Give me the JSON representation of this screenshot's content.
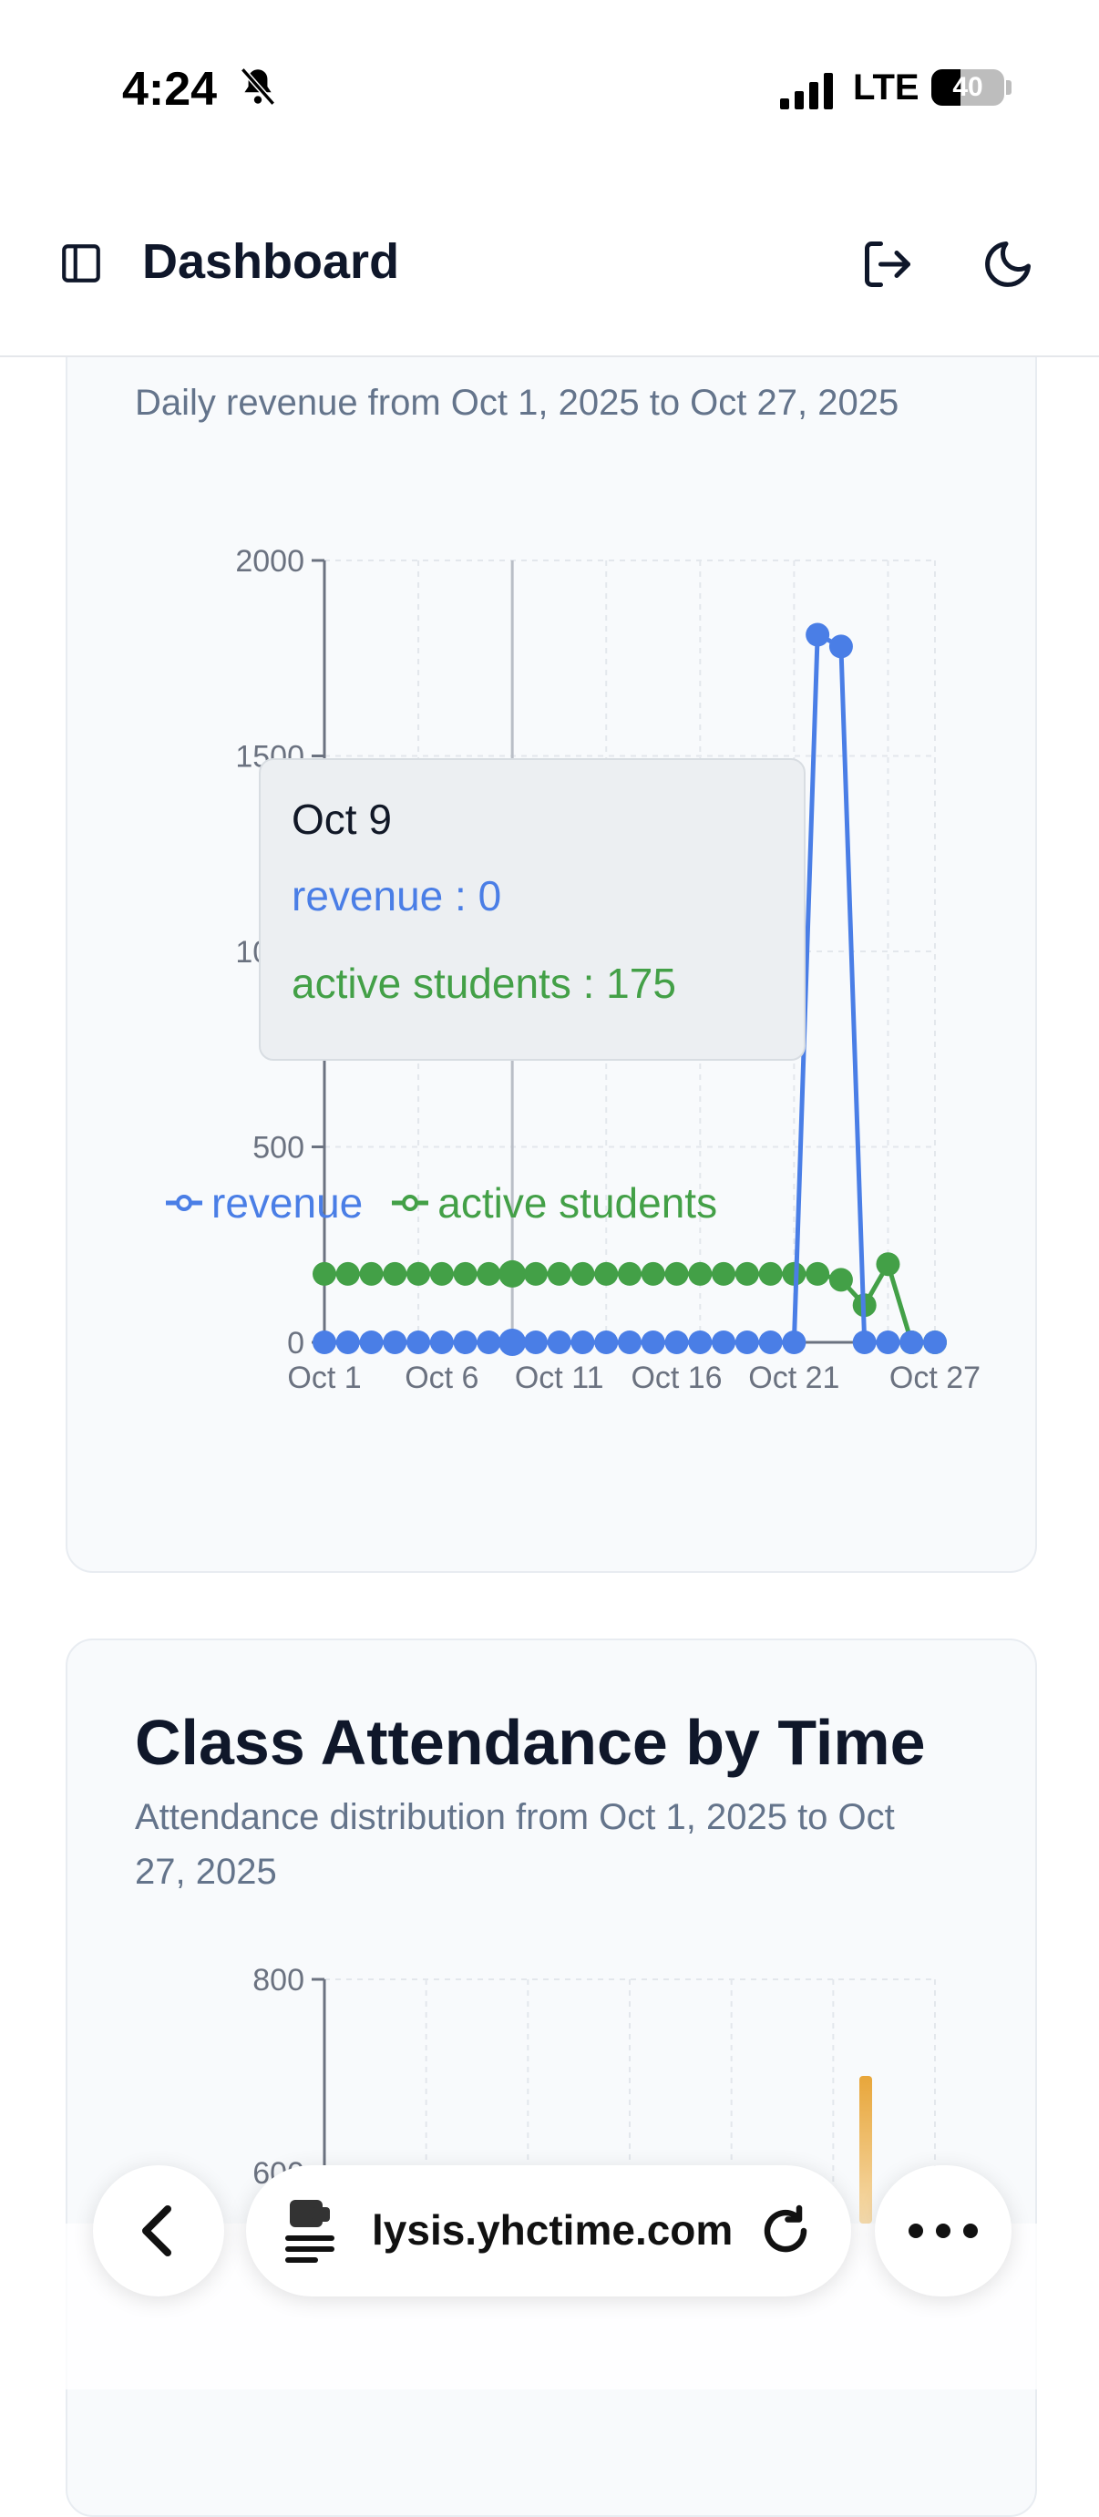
{
  "status_bar": {
    "time": "4:24",
    "network": "LTE",
    "battery": "40",
    "battery_level": 0.4
  },
  "header": {
    "title": "Dashboard",
    "icons": [
      "sidebar-toggle-icon",
      "logout-icon",
      "moon-icon"
    ]
  },
  "revenue_card": {
    "subtitle": "Daily revenue from Oct 1, 2025 to Oct 27, 2025"
  },
  "tooltip": {
    "date": "Oct 9",
    "revenue_text": "revenue : 0",
    "students_text": "active students : 175"
  },
  "attendance_card": {
    "title": "Class Attendance by Time",
    "subtitle": "Attendance distribution from Oct 1, 2025 to Oct 27, 2025"
  },
  "browser": {
    "url": "lysis.yhctime.com"
  },
  "chart_data": [
    {
      "type": "line",
      "title": "",
      "xlabel": "",
      "ylabel": "",
      "ylim": [
        0,
        2000
      ],
      "yticks": [
        0,
        500,
        1000,
        1500,
        2000
      ],
      "xticks": [
        "Oct 1",
        "Oct 6",
        "Oct 11",
        "Oct 16",
        "Oct 21",
        "Oct 27"
      ],
      "categories": [
        "Oct 1",
        "Oct 2",
        "Oct 3",
        "Oct 4",
        "Oct 5",
        "Oct 6",
        "Oct 7",
        "Oct 8",
        "Oct 9",
        "Oct 10",
        "Oct 11",
        "Oct 12",
        "Oct 13",
        "Oct 14",
        "Oct 15",
        "Oct 16",
        "Oct 17",
        "Oct 18",
        "Oct 19",
        "Oct 20",
        "Oct 21",
        "Oct 22",
        "Oct 23",
        "Oct 24",
        "Oct 25",
        "Oct 26",
        "Oct 27"
      ],
      "grid": true,
      "legend_position": "bottom",
      "series": [
        {
          "name": "revenue",
          "color": "#4a7ee6",
          "values": [
            0,
            0,
            0,
            0,
            0,
            0,
            0,
            0,
            0,
            0,
            0,
            0,
            0,
            0,
            0,
            0,
            0,
            0,
            0,
            0,
            0,
            1810,
            1780,
            0,
            0,
            0,
            0
          ]
        },
        {
          "name": "active students",
          "color": "#43a047",
          "values": [
            175,
            175,
            175,
            175,
            175,
            175,
            175,
            175,
            175,
            175,
            175,
            175,
            175,
            175,
            175,
            175,
            175,
            175,
            175,
            175,
            175,
            175,
            160,
            95,
            200,
            0,
            0
          ]
        }
      ]
    },
    {
      "type": "bar",
      "title": "Class Attendance by Time",
      "ylim": [
        0,
        800
      ],
      "yticks": [
        600,
        800
      ],
      "series": [
        {
          "name": "",
          "color": "#e8a63a",
          "values": [
            700
          ]
        }
      ]
    }
  ]
}
